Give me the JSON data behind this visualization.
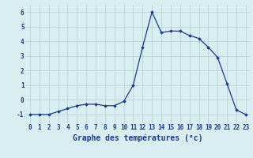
{
  "hours": [
    0,
    1,
    2,
    3,
    4,
    5,
    6,
    7,
    8,
    9,
    10,
    11,
    12,
    13,
    14,
    15,
    16,
    17,
    18,
    19,
    20,
    21,
    22,
    23
  ],
  "temps": [
    -1.0,
    -1.0,
    -1.0,
    -0.8,
    -0.6,
    -0.4,
    -0.3,
    -0.3,
    -0.4,
    -0.4,
    -0.1,
    1.0,
    3.6,
    6.0,
    4.6,
    4.7,
    4.7,
    4.4,
    4.2,
    3.6,
    2.9,
    1.1,
    -0.7,
    -1.0
  ],
  "line_color": "#1a3a8c",
  "marker": "D",
  "marker_size": 1.8,
  "bg_color": "#d8eef0",
  "grid_color": "#b0cece",
  "xlabel": "Graphe des températures (°c)",
  "xlabel_color": "#1a3a8c",
  "xlabel_fontsize": 7,
  "tick_color": "#1a3a8c",
  "tick_fontsize": 5.5,
  "ylim": [
    -1.6,
    6.5
  ],
  "yticks": [
    -1,
    0,
    1,
    2,
    3,
    4,
    5,
    6
  ]
}
